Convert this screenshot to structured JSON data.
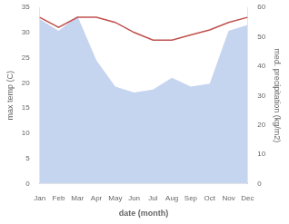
{
  "chart_data": {
    "type": "line",
    "categories": [
      "Jan",
      "Feb",
      "Mar",
      "Apr",
      "May",
      "Jun",
      "Jul",
      "Aug",
      "Sep",
      "Oct",
      "Nov",
      "Dec"
    ],
    "series": [
      {
        "type": "area",
        "axis": "y2",
        "color": "#c5d4ef",
        "values": [
          56,
          52,
          57,
          42,
          33,
          31,
          32,
          36,
          33,
          34,
          52,
          54
        ]
      },
      {
        "type": "line",
        "color": "#c0504d",
        "values": [
          33.0,
          31.0,
          33.0,
          33.0,
          32.0,
          30.0,
          28.5,
          28.5,
          29.5,
          30.5,
          32.0,
          33.0
        ]
      }
    ],
    "xlabel": "date (month)",
    "ylabel": "max temp (C)",
    "y2label": "med. precipitation (kg/m2)",
    "ylim": [
      0,
      35
    ],
    "yticks": [
      0,
      5,
      10,
      15,
      20,
      25,
      30,
      35
    ],
    "y2lim": [
      0,
      60
    ],
    "y2ticks": [
      0,
      10,
      20,
      30,
      40,
      50,
      60
    ],
    "grid": false
  }
}
